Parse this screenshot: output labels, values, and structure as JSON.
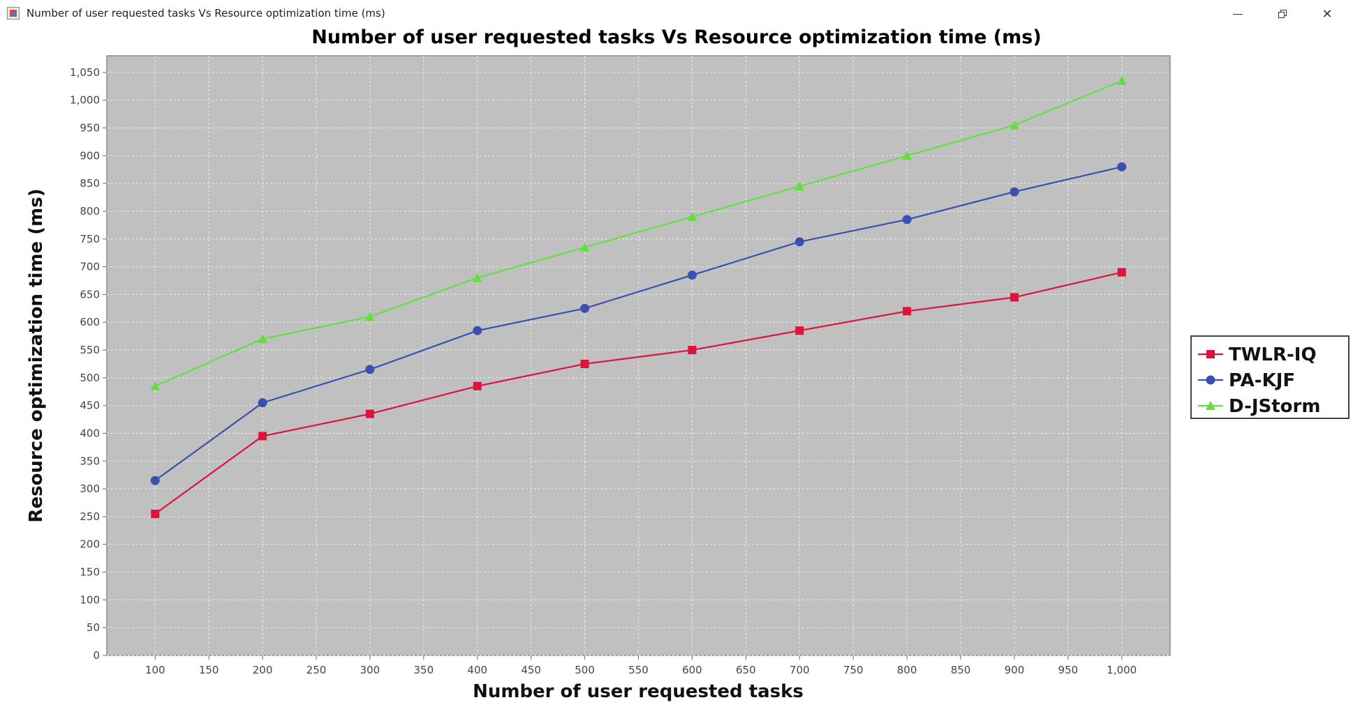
{
  "window": {
    "title": "Number of user requested tasks Vs Resource optimization time (ms)"
  },
  "colors": {
    "plot_background": "#c0c0c0",
    "gridline": "#e6e6e6"
  },
  "chart_data": {
    "type": "line",
    "title": "Number of user requested tasks Vs Resource optimization time (ms)",
    "xlabel": "Number of user requested tasks",
    "ylabel": "Resource optimization time (ms)",
    "xlim": [
      55,
      1045
    ],
    "ylim": [
      0,
      1080
    ],
    "grid": true,
    "legend_position": "right",
    "x": [
      100,
      200,
      300,
      400,
      500,
      600,
      700,
      800,
      900,
      1000
    ],
    "x_ticks": [
      "100",
      "150",
      "200",
      "250",
      "300",
      "350",
      "400",
      "450",
      "500",
      "550",
      "600",
      "650",
      "700",
      "750",
      "800",
      "850",
      "900",
      "950",
      "1,000"
    ],
    "y_ticks": [
      "0",
      "50",
      "100",
      "150",
      "200",
      "250",
      "300",
      "350",
      "400",
      "450",
      "500",
      "550",
      "600",
      "650",
      "700",
      "750",
      "800",
      "850",
      "900",
      "950",
      "1,000",
      "1,050"
    ],
    "series": [
      {
        "name": "TWLR-IQ",
        "color": "#dc143c",
        "marker": "square",
        "values": [
          255,
          395,
          435,
          485,
          525,
          550,
          585,
          620,
          645,
          690
        ]
      },
      {
        "name": "PA-KJF",
        "color": "#3a4fb0",
        "marker": "circle",
        "values": [
          315,
          455,
          515,
          585,
          625,
          685,
          745,
          785,
          835,
          880
        ]
      },
      {
        "name": "D-JStorm",
        "color": "#66dd44",
        "marker": "triangle",
        "values": [
          485,
          570,
          610,
          680,
          735,
          790,
          845,
          900,
          955,
          1035
        ]
      }
    ]
  }
}
